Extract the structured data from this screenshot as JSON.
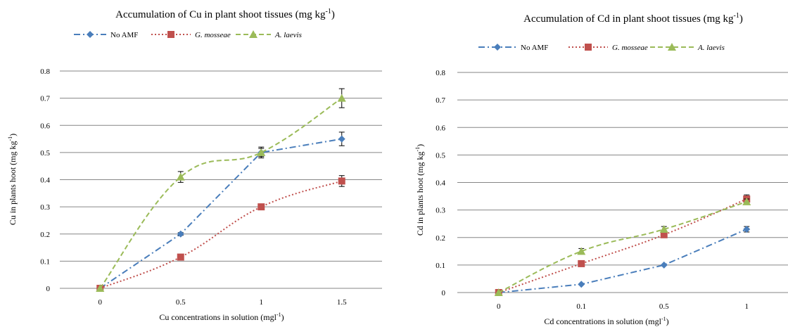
{
  "chart_data": [
    {
      "type": "line",
      "title": "Accumulation of  Cu in plant shoot tissues (mg kg",
      "title_sup": "-1",
      "title_end": ")",
      "xlabel": "Cu concentrations in solution (mgl",
      "xlabel_sup": "-1",
      "xlabel_end": ")",
      "ylabel": "Cu in plants hoot (mg kg",
      "ylabel_sup": "-1",
      "ylabel_end": ")",
      "categories": [
        "0",
        "0.5",
        "1",
        "1.5"
      ],
      "ylim": [
        0,
        0.8
      ],
      "yticks": [
        "0",
        "0.1",
        "0.2",
        "0.3",
        "0.4",
        "0.5",
        "0.6",
        "0.7",
        "0.8"
      ],
      "grid": true,
      "legend_position": "top",
      "series": [
        {
          "name": "No AMF",
          "values": [
            0,
            0.2,
            0.5,
            0.55
          ],
          "errors": [
            0,
            0.005,
            0.02,
            0.025
          ],
          "color": "#4a7ebb",
          "marker": "diamond",
          "dash": "dash-dot",
          "smooth": false
        },
        {
          "name": "G. mosseae",
          "values": [
            0,
            0.115,
            0.3,
            0.395
          ],
          "errors": [
            0,
            0,
            0.01,
            0.02
          ],
          "color": "#c0504d",
          "marker": "square",
          "dash": "dot",
          "smooth": true
        },
        {
          "name": "A. laevis",
          "values": [
            0,
            0.41,
            0.5,
            0.7
          ],
          "errors": [
            0,
            0.02,
            0.015,
            0.035
          ],
          "color": "#9bbb59",
          "marker": "triangle",
          "dash": "dash",
          "smooth": true
        }
      ]
    },
    {
      "type": "line",
      "title": "Accumulation of  Cd in plant shoot tissues (mg kg",
      "title_sup": "-1",
      "title_end": ")",
      "xlabel": "Cd concentrations in solution (mgl",
      "xlabel_sup": "-1",
      "xlabel_end": ")",
      "ylabel": "Cd in plants hoot (mg kg",
      "ylabel_sup": "-1",
      "ylabel_end": ")",
      "categories": [
        "0",
        "0.1",
        "0.5",
        "1"
      ],
      "ylim": [
        0,
        0.8
      ],
      "yticks": [
        "0",
        "0.1",
        "0.2",
        "0.3",
        "0.4",
        "0.5",
        "0.6",
        "0.7",
        "0.8"
      ],
      "grid": true,
      "legend_position": "top",
      "series": [
        {
          "name": "No AMF",
          "values": [
            0,
            0.03,
            0.1,
            0.23
          ],
          "errors": [
            0,
            0,
            0,
            0.01
          ],
          "color": "#4a7ebb",
          "marker": "diamond",
          "dash": "dash-dot",
          "smooth": false
        },
        {
          "name": "G. mosseae",
          "values": [
            0,
            0.105,
            0.21,
            0.34
          ],
          "errors": [
            0,
            0,
            0,
            0.015
          ],
          "color": "#c0504d",
          "marker": "square",
          "dash": "dot",
          "smooth": true
        },
        {
          "name": "A. laevis",
          "values": [
            0,
            0.15,
            0.23,
            0.33
          ],
          "errors": [
            0,
            0.01,
            0.01,
            0.01
          ],
          "color": "#9bbb59",
          "marker": "triangle",
          "dash": "dash",
          "smooth": true
        }
      ]
    }
  ]
}
